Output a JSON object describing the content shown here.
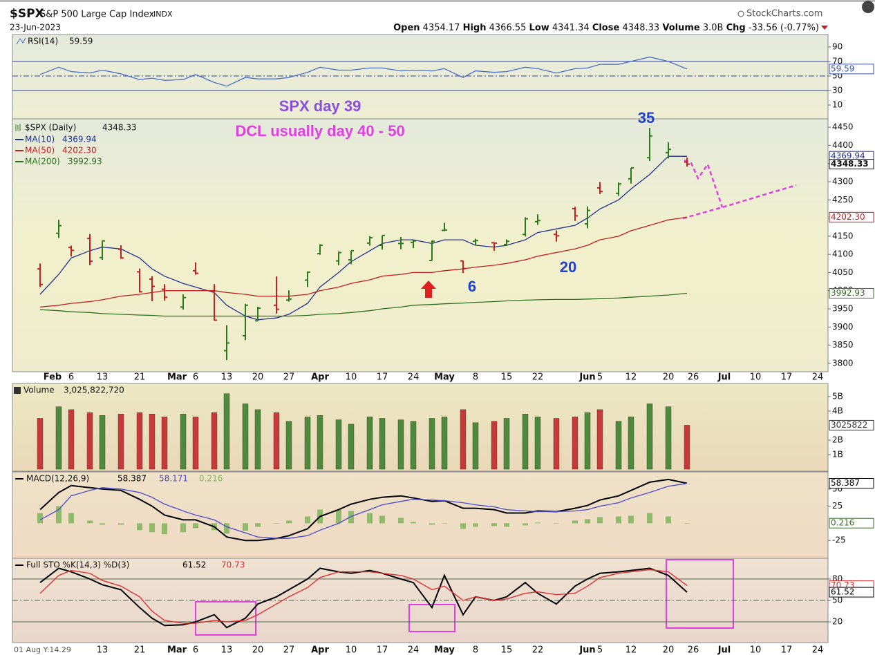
{
  "header": {
    "symbol": "$SPX",
    "name": "S&P 500 Large Cap Index",
    "exchange": "INDX",
    "date": "23-Jun-2023",
    "brand": "StockCharts.com",
    "open_label": "Open",
    "high_label": "High",
    "low_label": "Low",
    "close_label": "Close",
    "volume_label": "Volume",
    "volume": "3.0B",
    "change_label": "Chg",
    "change": "-33.56 (-0.77%)"
  },
  "annotations": {
    "day": "SPX day 39",
    "dcl": "DCL usually day 40 - 50",
    "count_35": "35",
    "count_6": "6",
    "count_20": "20"
  },
  "chart_data": [
    {
      "type": "line",
      "title": "RSI(14)",
      "series": [
        {
          "color": "#4a6cc8",
          "values": [
            52,
            62,
            56,
            54,
            58,
            53,
            45,
            47,
            44,
            45,
            52,
            41,
            36,
            48,
            46,
            46,
            48,
            55,
            62,
            58,
            58,
            61,
            61,
            57,
            58,
            57,
            60,
            48,
            57,
            55,
            56,
            62,
            60,
            54,
            60,
            61,
            66,
            66,
            70,
            76,
            70,
            59.59
          ]
        }
      ],
      "ylim": [
        -9,
        107
      ],
      "yticks": [
        10,
        30,
        50,
        70,
        90
      ],
      "bands": {
        "upper": 70,
        "mid": 50,
        "lower": 30
      }
    },
    {
      "type": "ohlc",
      "title": "$SPX (Daily)",
      "up_color": "#2a7a1a",
      "down_color": "#c02020",
      "x": [
        "2023-01-30",
        "2023-02-02",
        "2023-02-06",
        "2023-02-09",
        "2023-02-13",
        "2023-02-16",
        "2023-02-21",
        "2023-02-23",
        "2023-02-27",
        "2023-03-02",
        "2023-03-06",
        "2023-03-09",
        "2023-03-13",
        "2023-03-16",
        "2023-03-20",
        "2023-03-23",
        "2023-03-27",
        "2023-03-30",
        "2023-04-03",
        "2023-04-06",
        "2023-04-10",
        "2023-04-13",
        "2023-04-17",
        "2023-04-20",
        "2023-04-24",
        "2023-04-27",
        "2023-05-01",
        "2023-05-04",
        "2023-05-08",
        "2023-05-11",
        "2023-05-15",
        "2023-05-18",
        "2023-05-22",
        "2023-05-25",
        "2023-05-30",
        "2023-06-01",
        "2023-06-05",
        "2023-06-08",
        "2023-06-12",
        "2023-06-15",
        "2023-06-20",
        "2023-06-23"
      ],
      "open": [
        4060,
        4158,
        4119,
        4144,
        4091,
        4114,
        4052,
        4032,
        4004,
        3955,
        4055,
        3998,
        3835,
        3876,
        3917,
        3960,
        3974,
        4029,
        4102,
        4082,
        4085,
        4131,
        4125,
        4130,
        4133,
        4083,
        4166,
        4082,
        4136,
        4132,
        4127,
        4155,
        4190,
        4155,
        4226,
        4184,
        4283,
        4268,
        4308,
        4366,
        4380,
        4354.17
      ],
      "high": [
        4075,
        4195,
        4124,
        4156,
        4138,
        4125,
        4061,
        4040,
        4018,
        3990,
        4078,
        4018,
        3905,
        3964,
        3956,
        4039,
        4001,
        4053,
        4128,
        4108,
        4110,
        4150,
        4152,
        4148,
        4139,
        4138,
        4187,
        4083,
        4143,
        4133,
        4141,
        4202,
        4210,
        4166,
        4231,
        4232,
        4299,
        4298,
        4338,
        4448,
        4408,
        4366.55
      ],
      "low": [
        4010,
        4145,
        4094,
        4070,
        4085,
        4088,
        3995,
        3971,
        3973,
        3948,
        4044,
        3918,
        3809,
        3864,
        3916,
        3937,
        3970,
        4010,
        4099,
        4070,
        4073,
        4124,
        4113,
        4114,
        4117,
        4083,
        4164,
        4049,
        4125,
        4110,
        4123,
        4149,
        4181,
        4135,
        4192,
        4172,
        4266,
        4261,
        4295,
        4357,
        4364,
        4341.34
      ],
      "close": [
        4017,
        4179,
        4111,
        4081,
        4137,
        4090,
        3997,
        4012,
        3982,
        3981,
        4048,
        3919,
        3856,
        3960,
        3952,
        3949,
        3977,
        4051,
        4125,
        4105,
        4110,
        4146,
        4152,
        4130,
        4137,
        4136,
        4167,
        4061,
        4138,
        4131,
        4136,
        4198,
        4193,
        4151,
        4206,
        4221,
        4273,
        4294,
        4338,
        4426,
        4389,
        4348.33
      ],
      "series": [
        {
          "name": "MA(10)",
          "color": "#1f2f8f",
          "values": [
            3990,
            4045,
            4090,
            4110,
            4120,
            4115,
            4090,
            4060,
            4040,
            4020,
            4010,
            3995,
            3960,
            3930,
            3920,
            3925,
            3935,
            3965,
            4010,
            4050,
            4080,
            4110,
            4130,
            4140,
            4140,
            4130,
            4140,
            4140,
            4125,
            4120,
            4125,
            4140,
            4160,
            4170,
            4180,
            4200,
            4225,
            4250,
            4280,
            4320,
            4370,
            4369.94
          ]
        },
        {
          "name": "MA(50)",
          "color": "#c02020",
          "legend_value": "4202.30",
          "values": [
            3955,
            3960,
            3965,
            3970,
            3975,
            3985,
            3990,
            3995,
            4000,
            4000,
            4000,
            4000,
            3995,
            3990,
            3985,
            3985,
            3985,
            3990,
            4000,
            4010,
            4020,
            4030,
            4040,
            4045,
            4050,
            4050,
            4055,
            4060,
            4065,
            4070,
            4075,
            4085,
            4095,
            4105,
            4115,
            4125,
            4140,
            4150,
            4165,
            4180,
            4195,
            4202.3
          ]
        },
        {
          "name": "MA(200)",
          "color": "#2e6e1e",
          "values": [
            3948,
            3945,
            3942,
            3940,
            3937,
            3935,
            3933,
            3932,
            3930,
            3930,
            3930,
            3930,
            3930,
            3930,
            3930,
            3930,
            3930,
            3932,
            3935,
            3937,
            3940,
            3945,
            3950,
            3955,
            3960,
            3962,
            3964,
            3966,
            3968,
            3970,
            3972,
            3974,
            3975,
            3976,
            3976,
            3977,
            3978,
            3980,
            3982,
            3985,
            3988,
            3992.93
          ]
        }
      ],
      "ylim": [
        3777,
        4473
      ],
      "yticks": [
        3800,
        3850,
        3900,
        3950,
        4000,
        4050,
        4100,
        4150,
        4200,
        4250,
        4300,
        4350,
        4400,
        4450
      ],
      "xticks": [
        {
          "value": "2023-02-01",
          "label": "Feb"
        },
        {
          "value": "2023-02-06",
          "label": "6"
        },
        {
          "value": "2023-02-13",
          "label": "13"
        },
        {
          "value": "2023-02-21",
          "label": "21"
        },
        {
          "value": "2023-03-01",
          "label": "Mar"
        },
        {
          "value": "2023-03-06",
          "label": "6"
        },
        {
          "value": "2023-03-13",
          "label": "13"
        },
        {
          "value": "2023-03-20",
          "label": "20"
        },
        {
          "value": "2023-03-27",
          "label": "27"
        },
        {
          "value": "2023-04-03",
          "label": "Apr"
        },
        {
          "value": "2023-04-10",
          "label": "10"
        },
        {
          "value": "2023-04-17",
          "label": "17"
        },
        {
          "value": "2023-04-24",
          "label": "24"
        },
        {
          "value": "2023-05-01",
          "label": "May"
        },
        {
          "value": "2023-05-08",
          "label": "8"
        },
        {
          "value": "2023-05-15",
          "label": "15"
        },
        {
          "value": "2023-05-22",
          "label": "22"
        },
        {
          "value": "2023-06-01",
          "label": "Jun"
        },
        {
          "value": "2023-06-05",
          "label": "5"
        },
        {
          "value": "2023-06-12",
          "label": "12"
        },
        {
          "value": "2023-06-20",
          "label": "20"
        },
        {
          "value": "2023-06-26",
          "label": "26"
        },
        {
          "value": "2023-07-03",
          "label": "Jul"
        },
        {
          "value": "2023-07-10",
          "label": "10"
        },
        {
          "value": "2023-07-17",
          "label": "17"
        },
        {
          "value": "2023-07-24",
          "label": "24"
        }
      ]
    },
    {
      "type": "bar",
      "title": "Volume",
      "legend_value": "3,025,822,720",
      "tag_value": "3025822",
      "values": [
        3.5,
        4.3,
        4.1,
        3.9,
        3.7,
        3.8,
        3.9,
        3.8,
        3.6,
        3.8,
        3.6,
        3.9,
        5.2,
        4.5,
        4.1,
        3.9,
        3.3,
        3.6,
        3.7,
        3.4,
        3.1,
        3.6,
        3.5,
        3.4,
        3.3,
        3.5,
        3.6,
        4.1,
        3.2,
        3.3,
        3.5,
        3.8,
        3.6,
        3.5,
        3.6,
        3.9,
        4.1,
        3.3,
        3.6,
        4.5,
        4.3,
        3.02582272
      ],
      "ylim": [
        -0.14,
        5.9
      ],
      "yticks": [
        {
          "value": 1,
          "label": "1B"
        },
        {
          "value": 2,
          "label": "2B"
        },
        {
          "value": 4,
          "label": "4B"
        },
        {
          "value": 5,
          "label": "5B"
        }
      ]
    },
    {
      "type": "macd",
      "title": "MACD(12,26,9)",
      "series": [
        {
          "color": "#000000",
          "values": [
            20,
            45,
            55,
            52,
            50,
            48,
            35,
            25,
            12,
            5,
            5,
            -5,
            -20,
            -25,
            -25,
            -22,
            -18,
            -8,
            10,
            20,
            28,
            35,
            38,
            40,
            37,
            32,
            33,
            22,
            22,
            20,
            15,
            15,
            18,
            17,
            22,
            26,
            34,
            40,
            48,
            60,
            64,
            58.387
          ]
        },
        {
          "color": "#4848d0",
          "values": [
            5,
            20,
            40,
            48,
            52,
            50,
            45,
            38,
            28,
            18,
            12,
            5,
            -5,
            -14,
            -20,
            -22,
            -22,
            -18,
            -10,
            0,
            10,
            20,
            27,
            32,
            35,
            34,
            33,
            30,
            27,
            24,
            20,
            18,
            17,
            17,
            18,
            20,
            25,
            30,
            37,
            45,
            54,
            58.171
          ]
        },
        {
          "color": "#7fb45a",
          "style": "histogram",
          "values": [
            15,
            25,
            15,
            4,
            -2,
            -2,
            -10,
            -13,
            -16,
            -13,
            -7,
            -10,
            -15,
            -11,
            -5,
            0,
            4,
            10,
            20,
            20,
            18,
            15,
            11,
            8,
            2,
            -2,
            0,
            -8,
            -5,
            -4,
            -5,
            -3,
            1,
            0,
            4,
            6,
            9,
            10,
            11,
            15,
            10,
            0.216
          ]
        }
      ],
      "ylim": [
        -51,
        75
      ],
      "yticks": [
        -25,
        25,
        50
      ]
    },
    {
      "type": "stochastic",
      "title": "Full STO %K(14,3) %D(3)",
      "series": [
        {
          "color": "#000000",
          "values": [
            75,
            95,
            90,
            80,
            72,
            65,
            40,
            25,
            15,
            16,
            20,
            30,
            12,
            25,
            45,
            55,
            65,
            80,
            95,
            90,
            88,
            92,
            88,
            80,
            75,
            40,
            85,
            30,
            55,
            50,
            55,
            75,
            60,
            45,
            70,
            80,
            88,
            90,
            92,
            95,
            85,
            61.52
          ]
        },
        {
          "color": "#e03030",
          "values": [
            60,
            85,
            92,
            88,
            78,
            70,
            55,
            35,
            22,
            18,
            18,
            22,
            20,
            22,
            30,
            45,
            55,
            68,
            82,
            90,
            90,
            90,
            88,
            85,
            80,
            65,
            70,
            50,
            55,
            50,
            52,
            60,
            62,
            58,
            60,
            70,
            82,
            88,
            90,
            93,
            90,
            70.73
          ]
        }
      ],
      "ylim": [
        -9,
        109
      ],
      "yticks": [
        20,
        50,
        80
      ],
      "bands": {
        "upper": 80,
        "mid": 50,
        "lower": 20
      },
      "xticks": [
        {
          "value": "2023-01-26",
          "label": "01 Aug Y:14.29"
        },
        {
          "value": "2023-02-13",
          "label": "13"
        },
        {
          "value": "2023-02-21",
          "label": "21"
        },
        {
          "value": "2023-03-01",
          "label": "Mar"
        },
        {
          "value": "2023-03-06",
          "label": "6"
        },
        {
          "value": "2023-03-13",
          "label": "13"
        },
        {
          "value": "2023-03-20",
          "label": "20"
        },
        {
          "value": "2023-03-27",
          "label": "27"
        },
        {
          "value": "2023-04-03",
          "label": "Apr"
        },
        {
          "value": "2023-04-10",
          "label": "10"
        },
        {
          "value": "2023-04-17",
          "label": "17"
        },
        {
          "value": "2023-04-24",
          "label": "24"
        },
        {
          "value": "2023-05-01",
          "label": "May"
        },
        {
          "value": "2023-05-08",
          "label": "8"
        },
        {
          "value": "2023-05-15",
          "label": "15"
        },
        {
          "value": "2023-05-22",
          "label": "22"
        },
        {
          "value": "2023-06-01",
          "label": "Jun"
        },
        {
          "value": "2023-06-05",
          "label": "5"
        },
        {
          "value": "2023-06-12",
          "label": "12"
        },
        {
          "value": "2023-06-20",
          "label": "20"
        },
        {
          "value": "2023-06-26",
          "label": "26"
        },
        {
          "value": "2023-07-03",
          "label": "Jul"
        },
        {
          "value": "2023-07-10",
          "label": "10"
        },
        {
          "value": "2023-07-17",
          "label": "17"
        },
        {
          "value": "2023-07-24",
          "label": "24"
        }
      ]
    }
  ]
}
